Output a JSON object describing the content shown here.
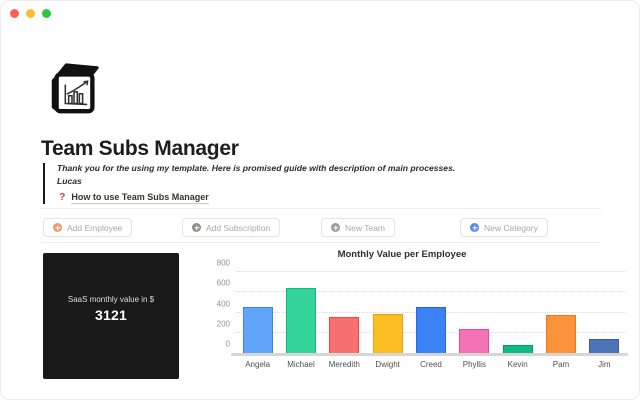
{
  "window": {
    "controls": [
      {
        "name": "close"
      },
      {
        "name": "minimize"
      },
      {
        "name": "maximize"
      }
    ]
  },
  "page": {
    "icon": "cube-with-growth-chart",
    "title": "Team Subs Manager",
    "quote": {
      "line1": "Thank you for the using my template. Here is promised guide with description of main processes.",
      "line2": "Lucas"
    },
    "guide_link": {
      "icon": "red-question-mark",
      "icon_glyph": "?",
      "label": "How to use Team Subs Manager"
    }
  },
  "actions": [
    {
      "label": "Add Employee",
      "icon": "plus-circle-icon",
      "icon_color": "#eb9a6d"
    },
    {
      "label": "Add Subscription",
      "icon": "plus-circle-icon",
      "icon_color": "#8f8e8b"
    },
    {
      "label": "New Team",
      "icon": "plus-circle-icon",
      "icon_color": "#9b9a97"
    },
    {
      "label": "New Category",
      "icon": "plus-circle-icon",
      "icon_color": "#5b87ec"
    }
  ],
  "kpi_card": {
    "label": "SaaS monthly value in $",
    "value": "3121",
    "background": "#191919"
  },
  "chart_data": {
    "type": "bar",
    "title": "Monthly Value per Employee",
    "categories": [
      "Angela",
      "Michael",
      "Meredith",
      "Dwight",
      "Creed",
      "Phyllis",
      "Kevin",
      "Pam",
      "Jim"
    ],
    "values": [
      451,
      646,
      357,
      383,
      456,
      238,
      82,
      372,
      136
    ],
    "colors": [
      "#60a5fa",
      "#34d399",
      "#f87171",
      "#fbbf24",
      "#3b82f6",
      "#f472b6",
      "#10b981",
      "#fb923c",
      "#4d74b8"
    ],
    "border_colors": [
      "#3b82f6",
      "#10b981",
      "#ef4444",
      "#f59e0b",
      "#2563eb",
      "#ec4899",
      "#059669",
      "#f97316",
      "#3b5c9e"
    ],
    "xlabel": "",
    "ylabel": "",
    "ylim": [
      0,
      800
    ],
    "yticks": [
      0,
      200,
      400,
      600,
      800
    ],
    "grid": "dotted-horizontal",
    "legend": "none"
  }
}
